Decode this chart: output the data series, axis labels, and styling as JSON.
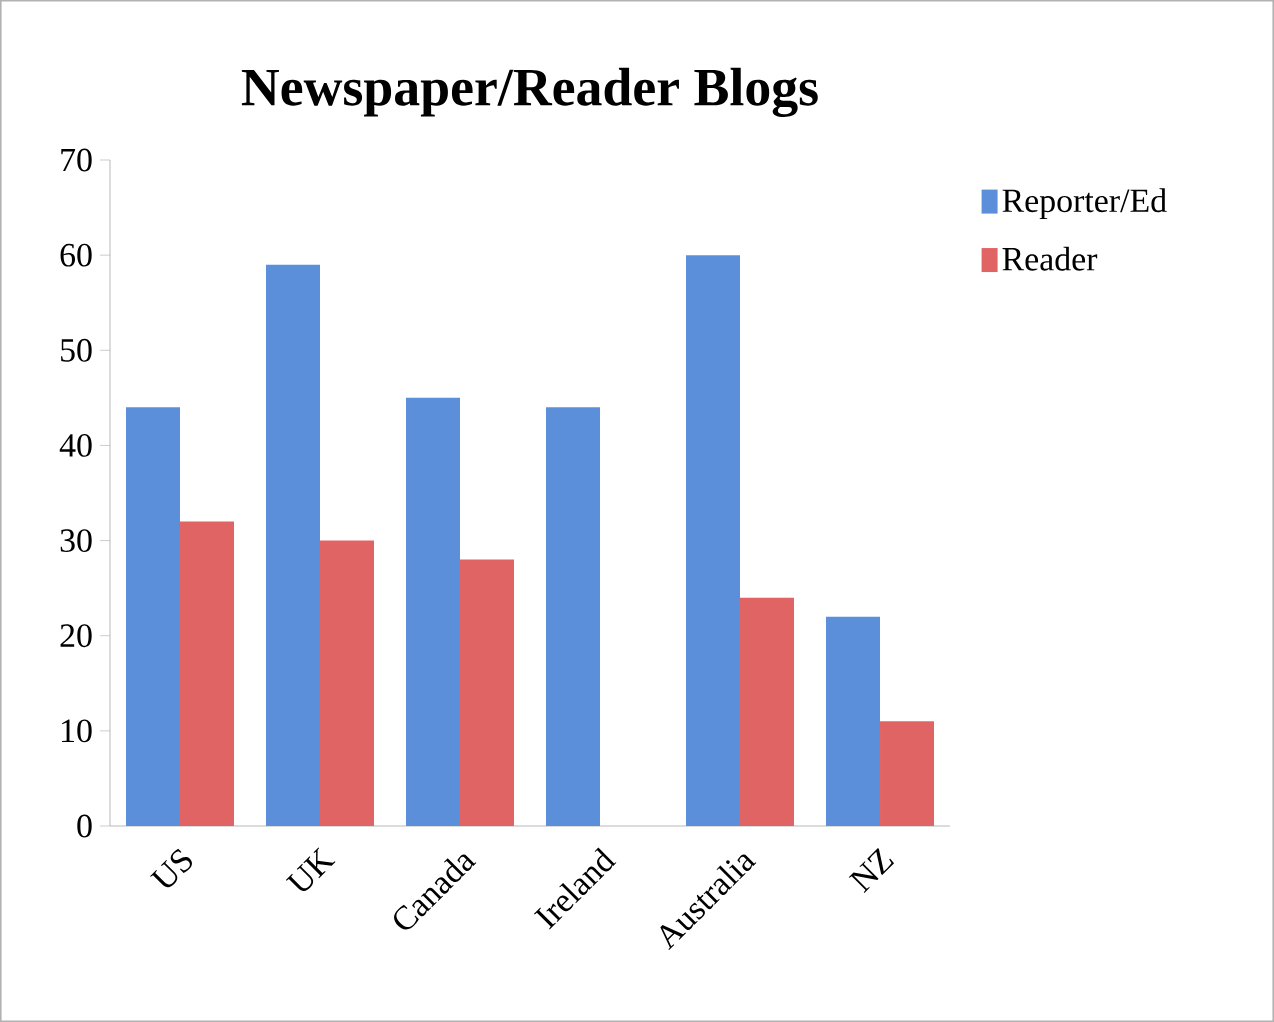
{
  "chart_data": {
    "type": "bar",
    "title": "Newspaper/Reader Blogs",
    "categories": [
      "US",
      "UK",
      "Canada",
      "Ireland",
      "Australia",
      "NZ"
    ],
    "series": [
      {
        "name": "Reporter/Ed",
        "color": "#5b8fd9",
        "values": [
          44,
          59,
          45,
          44,
          60,
          22
        ]
      },
      {
        "name": "Reader",
        "color": "#e06464",
        "values": [
          32,
          30,
          28,
          null,
          24,
          11
        ]
      }
    ],
    "ylim": [
      0,
      70
    ],
    "yticks": [
      0,
      10,
      20,
      30,
      40,
      50,
      60,
      70
    ],
    "legend": "top right"
  }
}
